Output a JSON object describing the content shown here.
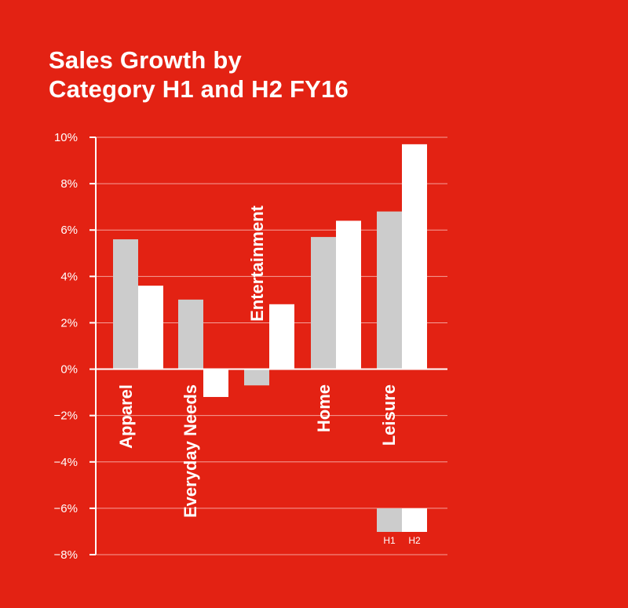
{
  "title": {
    "line1": "Sales Growth by",
    "line2": "Category H1 and H2 FY16"
  },
  "colors": {
    "background": "#e32213",
    "h1": "#cccccc",
    "h2": "#ffffff",
    "grid": "#f5a09a",
    "axis": "#ffffff"
  },
  "chart_data": {
    "type": "bar",
    "title": "Sales Growth by Category H1 and H2 FY16",
    "categories": [
      "Apparel",
      "Everyday Needs",
      "Entertainment",
      "Home",
      "Leisure"
    ],
    "series": [
      {
        "name": "H1",
        "values": [
          5.6,
          3.0,
          -0.7,
          5.7,
          6.8
        ]
      },
      {
        "name": "H2",
        "values": [
          3.6,
          -1.2,
          2.8,
          6.4,
          9.7
        ]
      }
    ],
    "y_ticks": [
      "10%",
      "8%",
      "6%",
      "4%",
      "2%",
      "0%",
      "−2%",
      "−4%",
      "−6%",
      "−8%"
    ],
    "ylim": [
      -8,
      10
    ],
    "grid": true,
    "legend": {
      "placement": "bottom-right",
      "labels": [
        "H1",
        "H2"
      ]
    }
  }
}
